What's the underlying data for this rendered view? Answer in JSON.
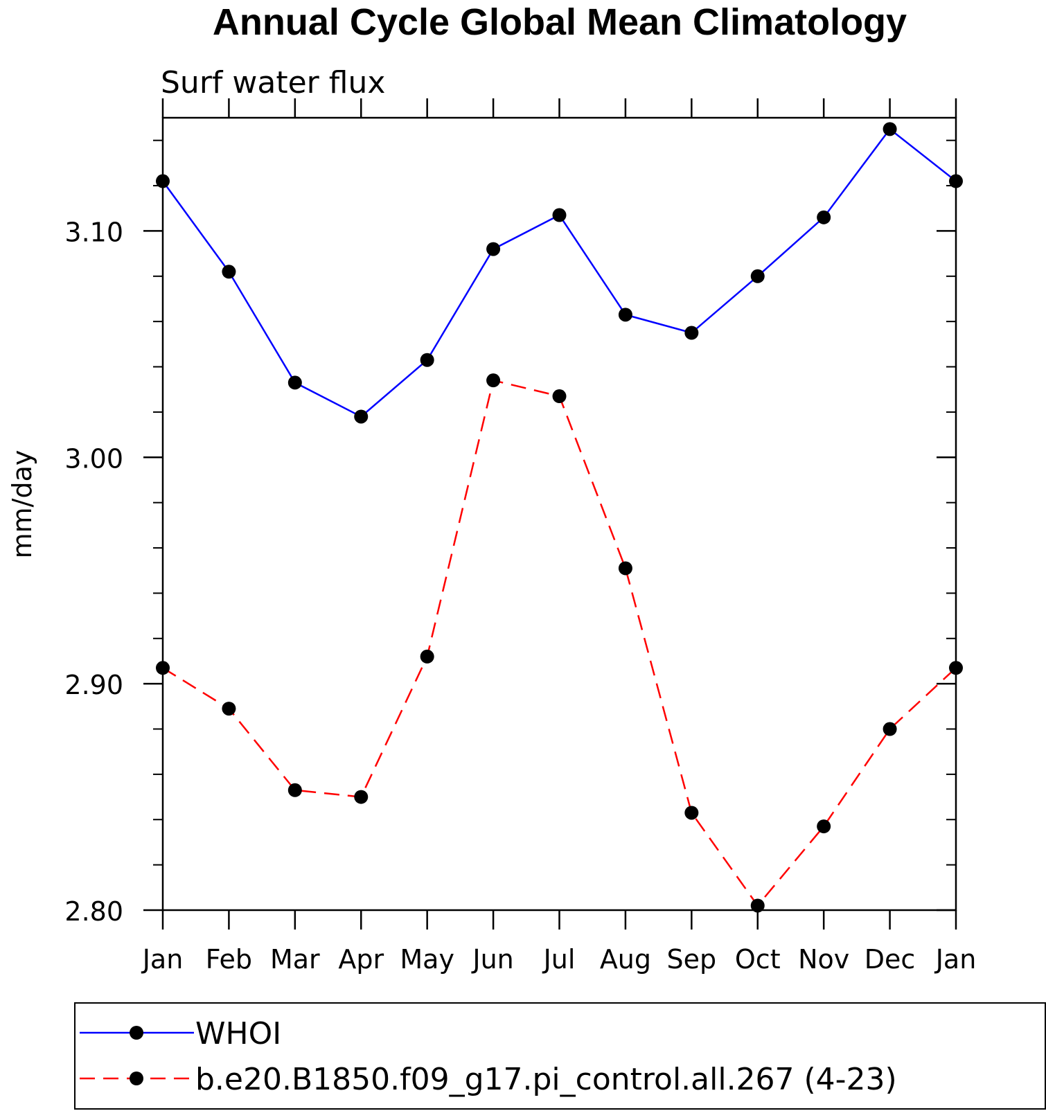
{
  "chart_data": {
    "type": "line",
    "title": "Annual Cycle Global Mean Climatology",
    "subtitle": "Surf  water flux",
    "xlabel": "",
    "ylabel": "mm/day",
    "categories": [
      "Jan",
      "Feb",
      "Mar",
      "Apr",
      "May",
      "Jun",
      "Jul",
      "Aug",
      "Sep",
      "Oct",
      "Nov",
      "Dec",
      "Jan"
    ],
    "ylim": [
      2.8,
      3.15
    ],
    "yticks": [
      2.8,
      2.9,
      3.0,
      3.1
    ],
    "ytick_labels": [
      "2.80",
      "2.90",
      "3.00",
      "3.10"
    ],
    "legend_position": "bottom",
    "series": [
      {
        "name": "WHOI",
        "color": "#0000ff",
        "line_style": "solid",
        "marker": "filled-circle",
        "values": [
          3.122,
          3.082,
          3.033,
          3.018,
          3.043,
          3.092,
          3.107,
          3.063,
          3.055,
          3.08,
          3.106,
          3.145,
          3.122
        ]
      },
      {
        "name": "b.e20.B1850.f09_g17.pi_control.all.267 (4-23)",
        "color": "#ff0000",
        "line_style": "dashed",
        "marker": "filled-circle",
        "values": [
          2.907,
          2.889,
          2.853,
          2.85,
          2.912,
          3.034,
          3.027,
          2.951,
          2.843,
          2.802,
          2.837,
          2.88,
          2.907
        ]
      }
    ]
  }
}
